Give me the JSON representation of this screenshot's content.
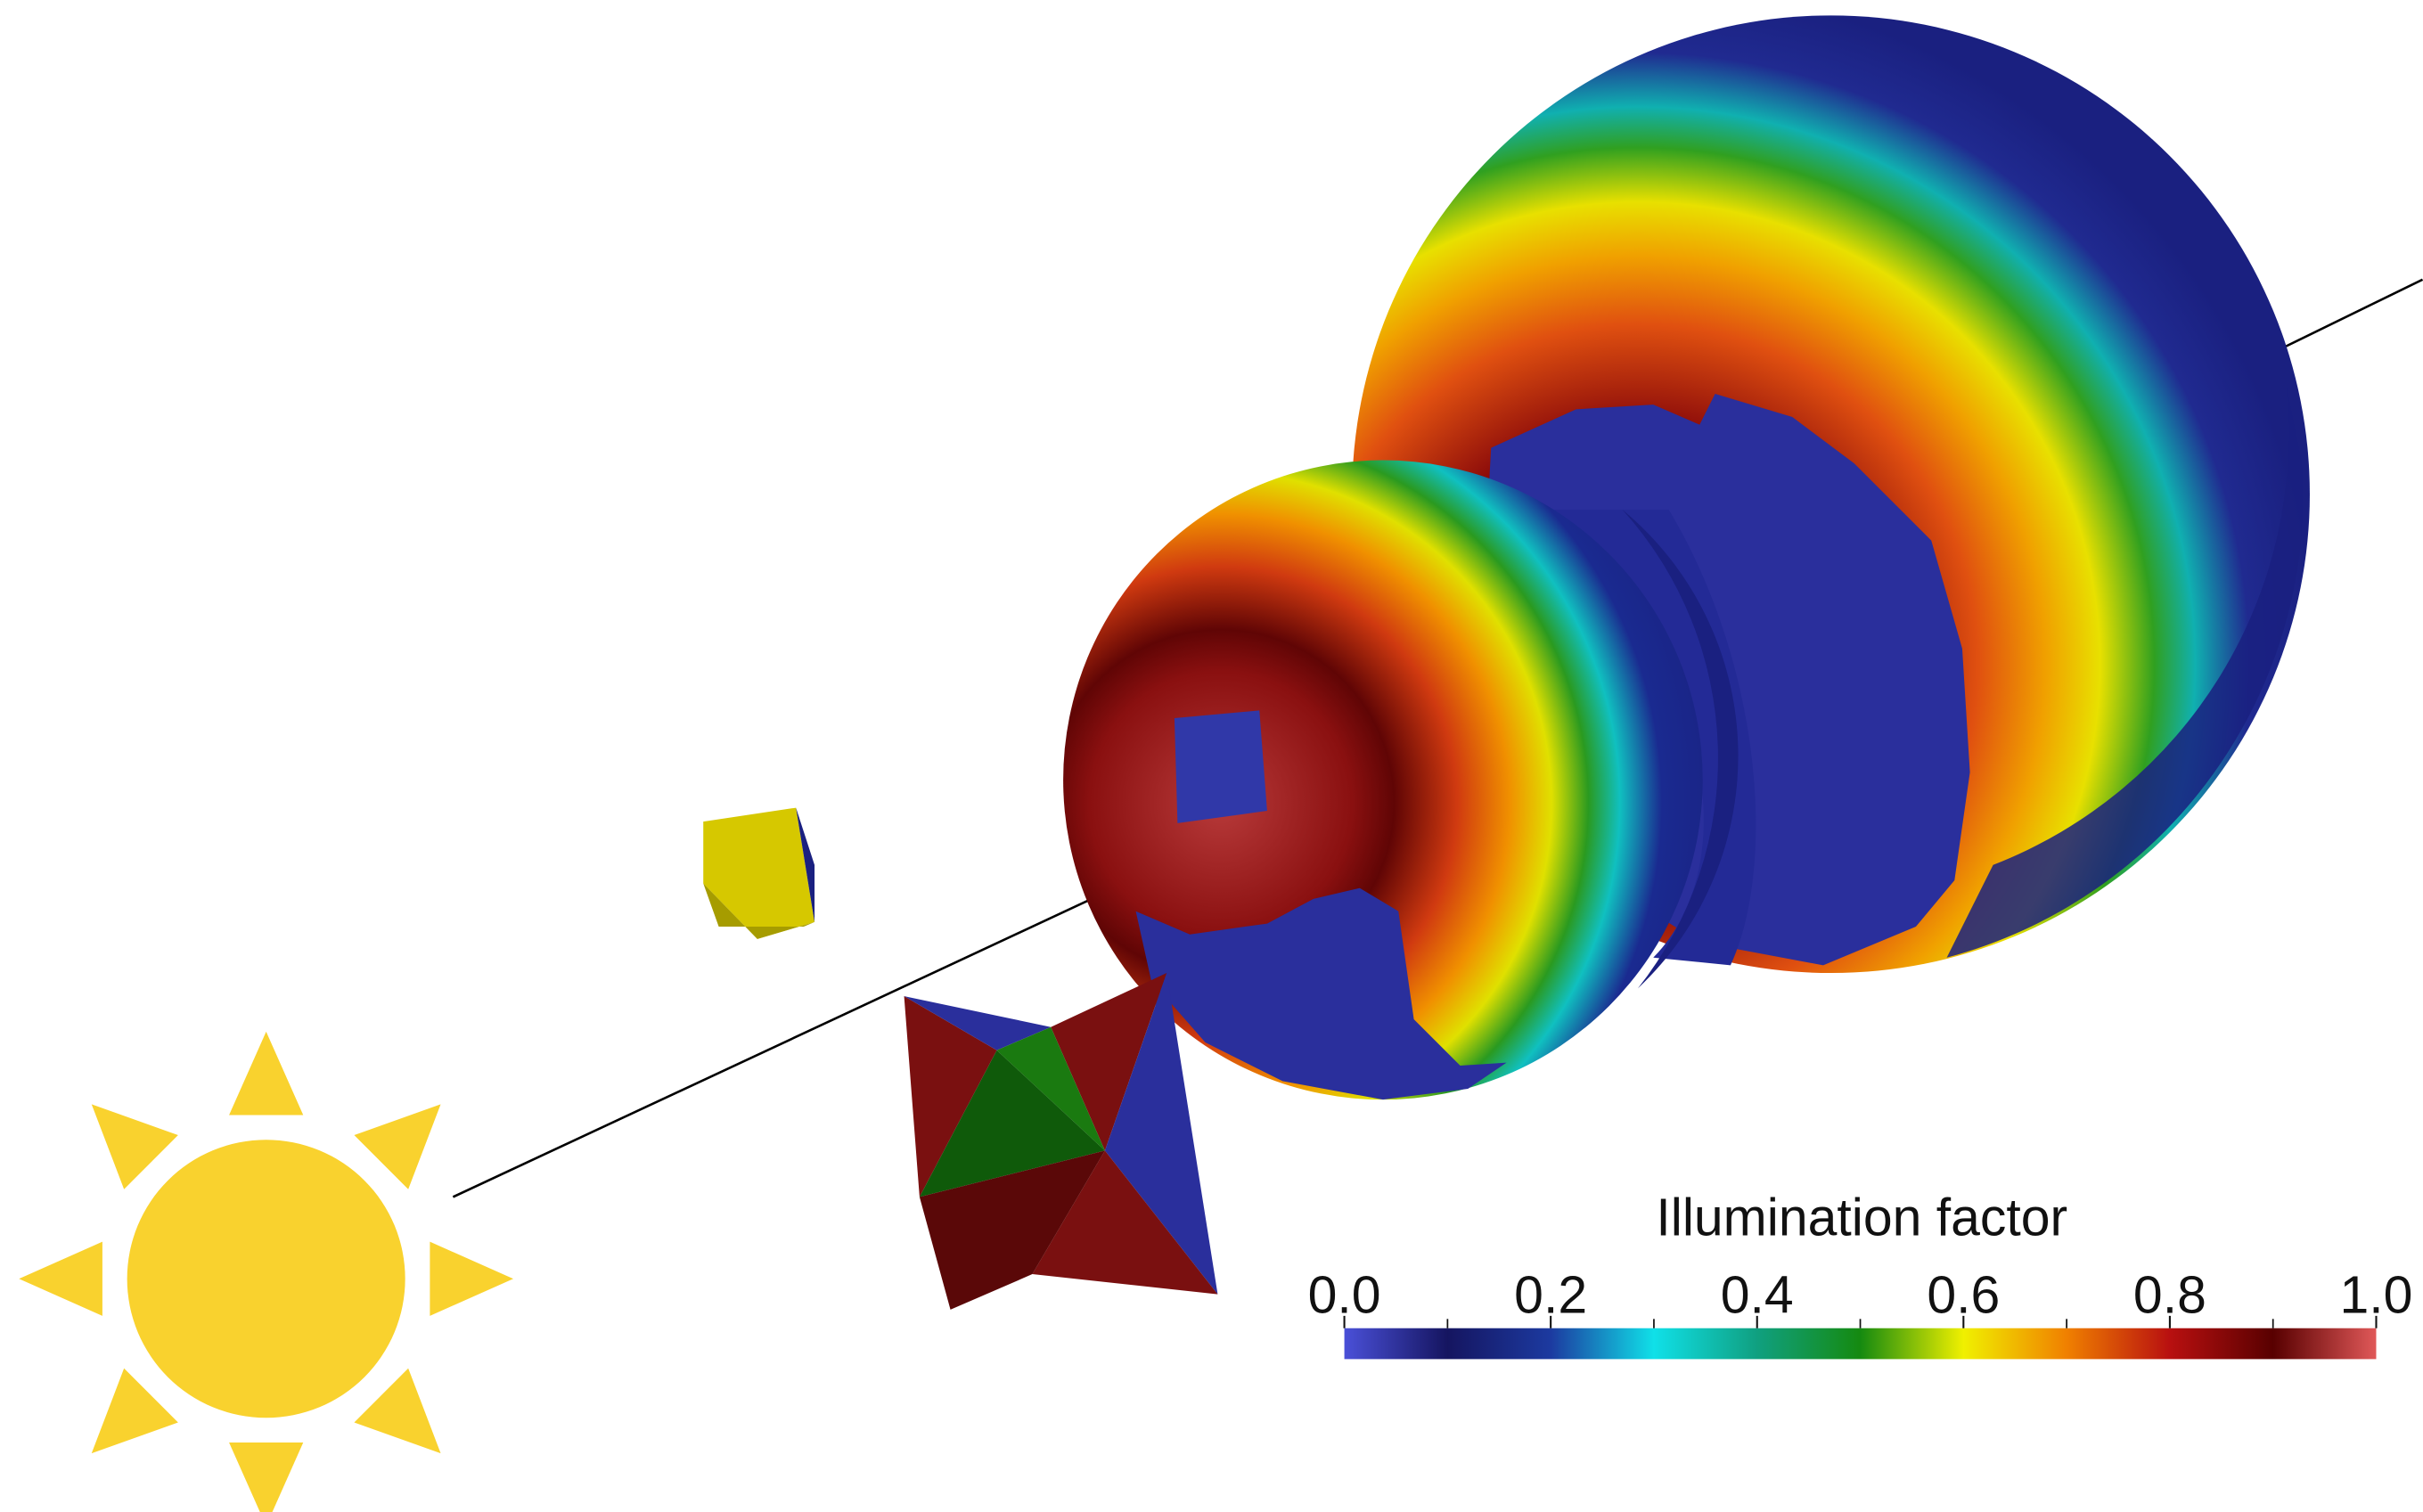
{
  "colorbar": {
    "title": "Illumination factor",
    "range": [
      0,
      1
    ],
    "ticks": [
      {
        "value": 0,
        "label": "0.0"
      },
      {
        "value": 0.2,
        "label": "0.2"
      },
      {
        "value": 0.4,
        "label": "0.4"
      },
      {
        "value": 0.6,
        "label": "0.6"
      },
      {
        "value": 0.8,
        "label": "0.8"
      },
      {
        "value": 1,
        "label": "1.0"
      }
    ],
    "minor_ticks": [
      0.1,
      0.3,
      0.5,
      0.7,
      0.9
    ],
    "colors": [
      "#4a50d8",
      "#151560",
      "#1c3aa0",
      "#10e0e8",
      "#10a080",
      "#158a10",
      "#f0f000",
      "#f08000",
      "#b81010",
      "#580000",
      "#e05858"
    ]
  }
}
